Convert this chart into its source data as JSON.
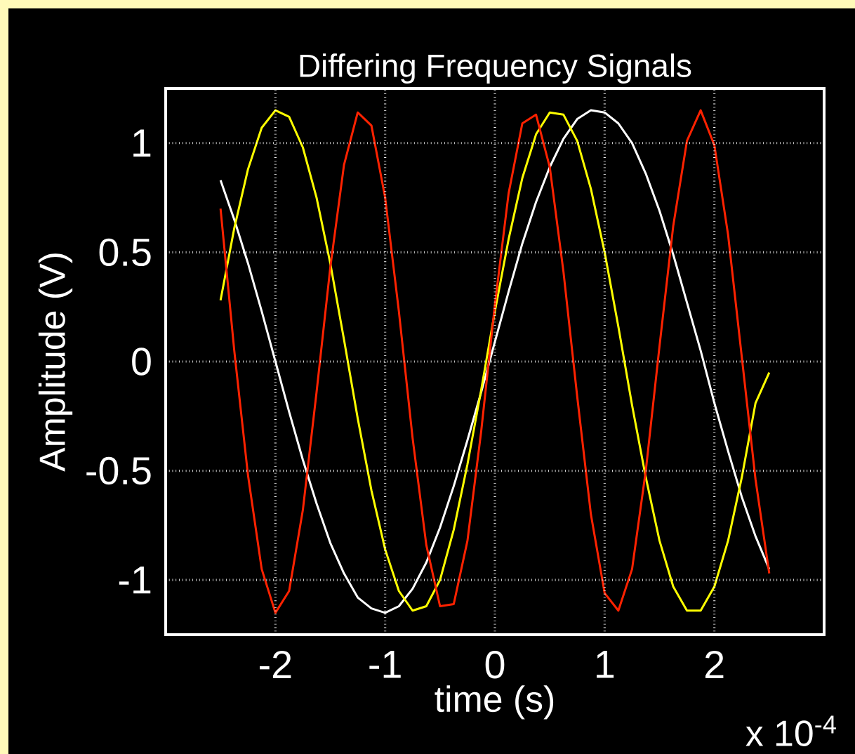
{
  "chart_data": {
    "type": "line",
    "title": "Differing Frequency Signals",
    "xlabel": "time (s)",
    "ylabel": "Amplitude (V)",
    "annotations": [
      "x 10$^{-4}$"
    ],
    "x": [
      -2.5,
      -2.375,
      -2.25,
      -2.125,
      -2,
      -1.875,
      -1.75,
      -1.625,
      -1.5,
      -1.375,
      -1.25,
      -1.125,
      -1,
      -0.875,
      -0.75,
      -0.625,
      -0.5,
      -0.375,
      -0.25,
      -0.125,
      0,
      0.125,
      0.25,
      0.375,
      0.5,
      0.625,
      0.75,
      0.875,
      1,
      1.125,
      1.25,
      1.375,
      1.5,
      1.625,
      1.75,
      1.875,
      2,
      2.125,
      2.25,
      2.375,
      2.5
    ],
    "series": [
      {
        "color": "#ffffff",
        "values": [
          0.83,
          0.65,
          0.45,
          0.23,
          0.0,
          -0.23,
          -0.45,
          -0.65,
          -0.83,
          -0.97,
          -1.08,
          -1.13,
          -1.15,
          -1.12,
          -1.04,
          -0.92,
          -0.76,
          -0.57,
          -0.36,
          -0.14,
          0.09,
          0.32,
          0.54,
          0.73,
          0.89,
          1.02,
          1.11,
          1.15,
          1.14,
          1.09,
          1.0,
          0.86,
          0.69,
          0.49,
          0.27,
          0.05,
          -0.19,
          -0.41,
          -0.62,
          -0.8,
          -0.95
        ]
      },
      {
        "color": "#ffff00",
        "values": [
          0.28,
          0.61,
          0.88,
          1.07,
          1.15,
          1.12,
          0.98,
          0.75,
          0.45,
          0.1,
          -0.26,
          -0.59,
          -0.86,
          -1.05,
          -1.14,
          -1.12,
          -1.0,
          -0.77,
          -0.47,
          -0.13,
          0.23,
          0.56,
          0.84,
          1.04,
          1.14,
          1.13,
          1.01,
          0.79,
          0.5,
          0.16,
          -0.2,
          -0.53,
          -0.82,
          -1.03,
          -1.14,
          -1.14,
          -1.03,
          -0.82,
          -0.53,
          -0.19,
          -0.05
        ]
      },
      {
        "color": "#ff2200",
        "values": [
          0.7,
          0.05,
          -0.52,
          -0.95,
          -1.15,
          -1.05,
          -0.68,
          -0.14,
          0.43,
          0.9,
          1.14,
          1.08,
          0.75,
          0.23,
          -0.35,
          -0.84,
          -1.12,
          -1.11,
          -0.82,
          -0.32,
          0.26,
          0.77,
          1.09,
          1.13,
          0.89,
          0.41,
          -0.16,
          -0.7,
          -1.06,
          -1.14,
          -0.95,
          -0.5,
          0.07,
          0.62,
          1.01,
          1.15,
          0.99,
          0.58,
          0.02,
          -0.54,
          -0.97
        ]
      }
    ],
    "xlim": [
      -3,
      3
    ],
    "ylim": [
      -1.25,
      1.25
    ],
    "xticks": [
      -2,
      -1,
      0,
      1,
      2
    ],
    "yticks": [
      1,
      0.5,
      0,
      -0.5,
      -1
    ],
    "grid": true,
    "marker": "none",
    "line_style": "solid"
  }
}
